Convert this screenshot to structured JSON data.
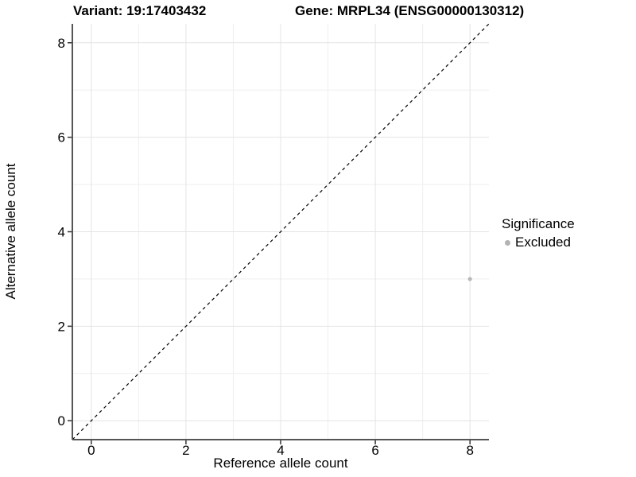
{
  "titles": {
    "variant": "Variant: 19:17403432",
    "gene": "Gene: MRPL34 (ENSG00000130312)"
  },
  "axes": {
    "x_label": "Reference allele count",
    "y_label": "Alternative allele count"
  },
  "legend": {
    "title": "Significance",
    "items": [
      {
        "label": "Excluded",
        "color": "#b3b3b3"
      }
    ]
  },
  "colors": {
    "background": "#ffffff",
    "grid_major": "#e4e4e4",
    "grid_minor": "#efefef",
    "axis_line": "#555555",
    "tick_mark": "#333333",
    "text": "#000000",
    "point": "#b8b8b8",
    "identity_line": "#000000"
  },
  "chart_data": {
    "type": "scatter",
    "title": "Variant: 19:17403432   Gene: MRPL34 (ENSG00000130312)",
    "xlabel": "Reference allele count",
    "ylabel": "Alternative allele count",
    "xlim": [
      -0.4,
      8.4
    ],
    "ylim": [
      -0.4,
      8.4
    ],
    "x_ticks": [
      0,
      2,
      4,
      6,
      8
    ],
    "y_ticks": [
      0,
      2,
      4,
      6,
      8
    ],
    "x_minor": [
      1,
      3,
      5,
      7
    ],
    "y_minor": [
      1,
      3,
      5,
      7
    ],
    "grid": true,
    "legend_position": "right",
    "series": [
      {
        "name": "Excluded",
        "color": "#b8b8b8",
        "points": [
          {
            "x": 8,
            "y": 3
          }
        ]
      }
    ],
    "reference_line": {
      "type": "identity",
      "slope": 1,
      "intercept": 0,
      "style": "dashed",
      "color": "#000000"
    }
  }
}
